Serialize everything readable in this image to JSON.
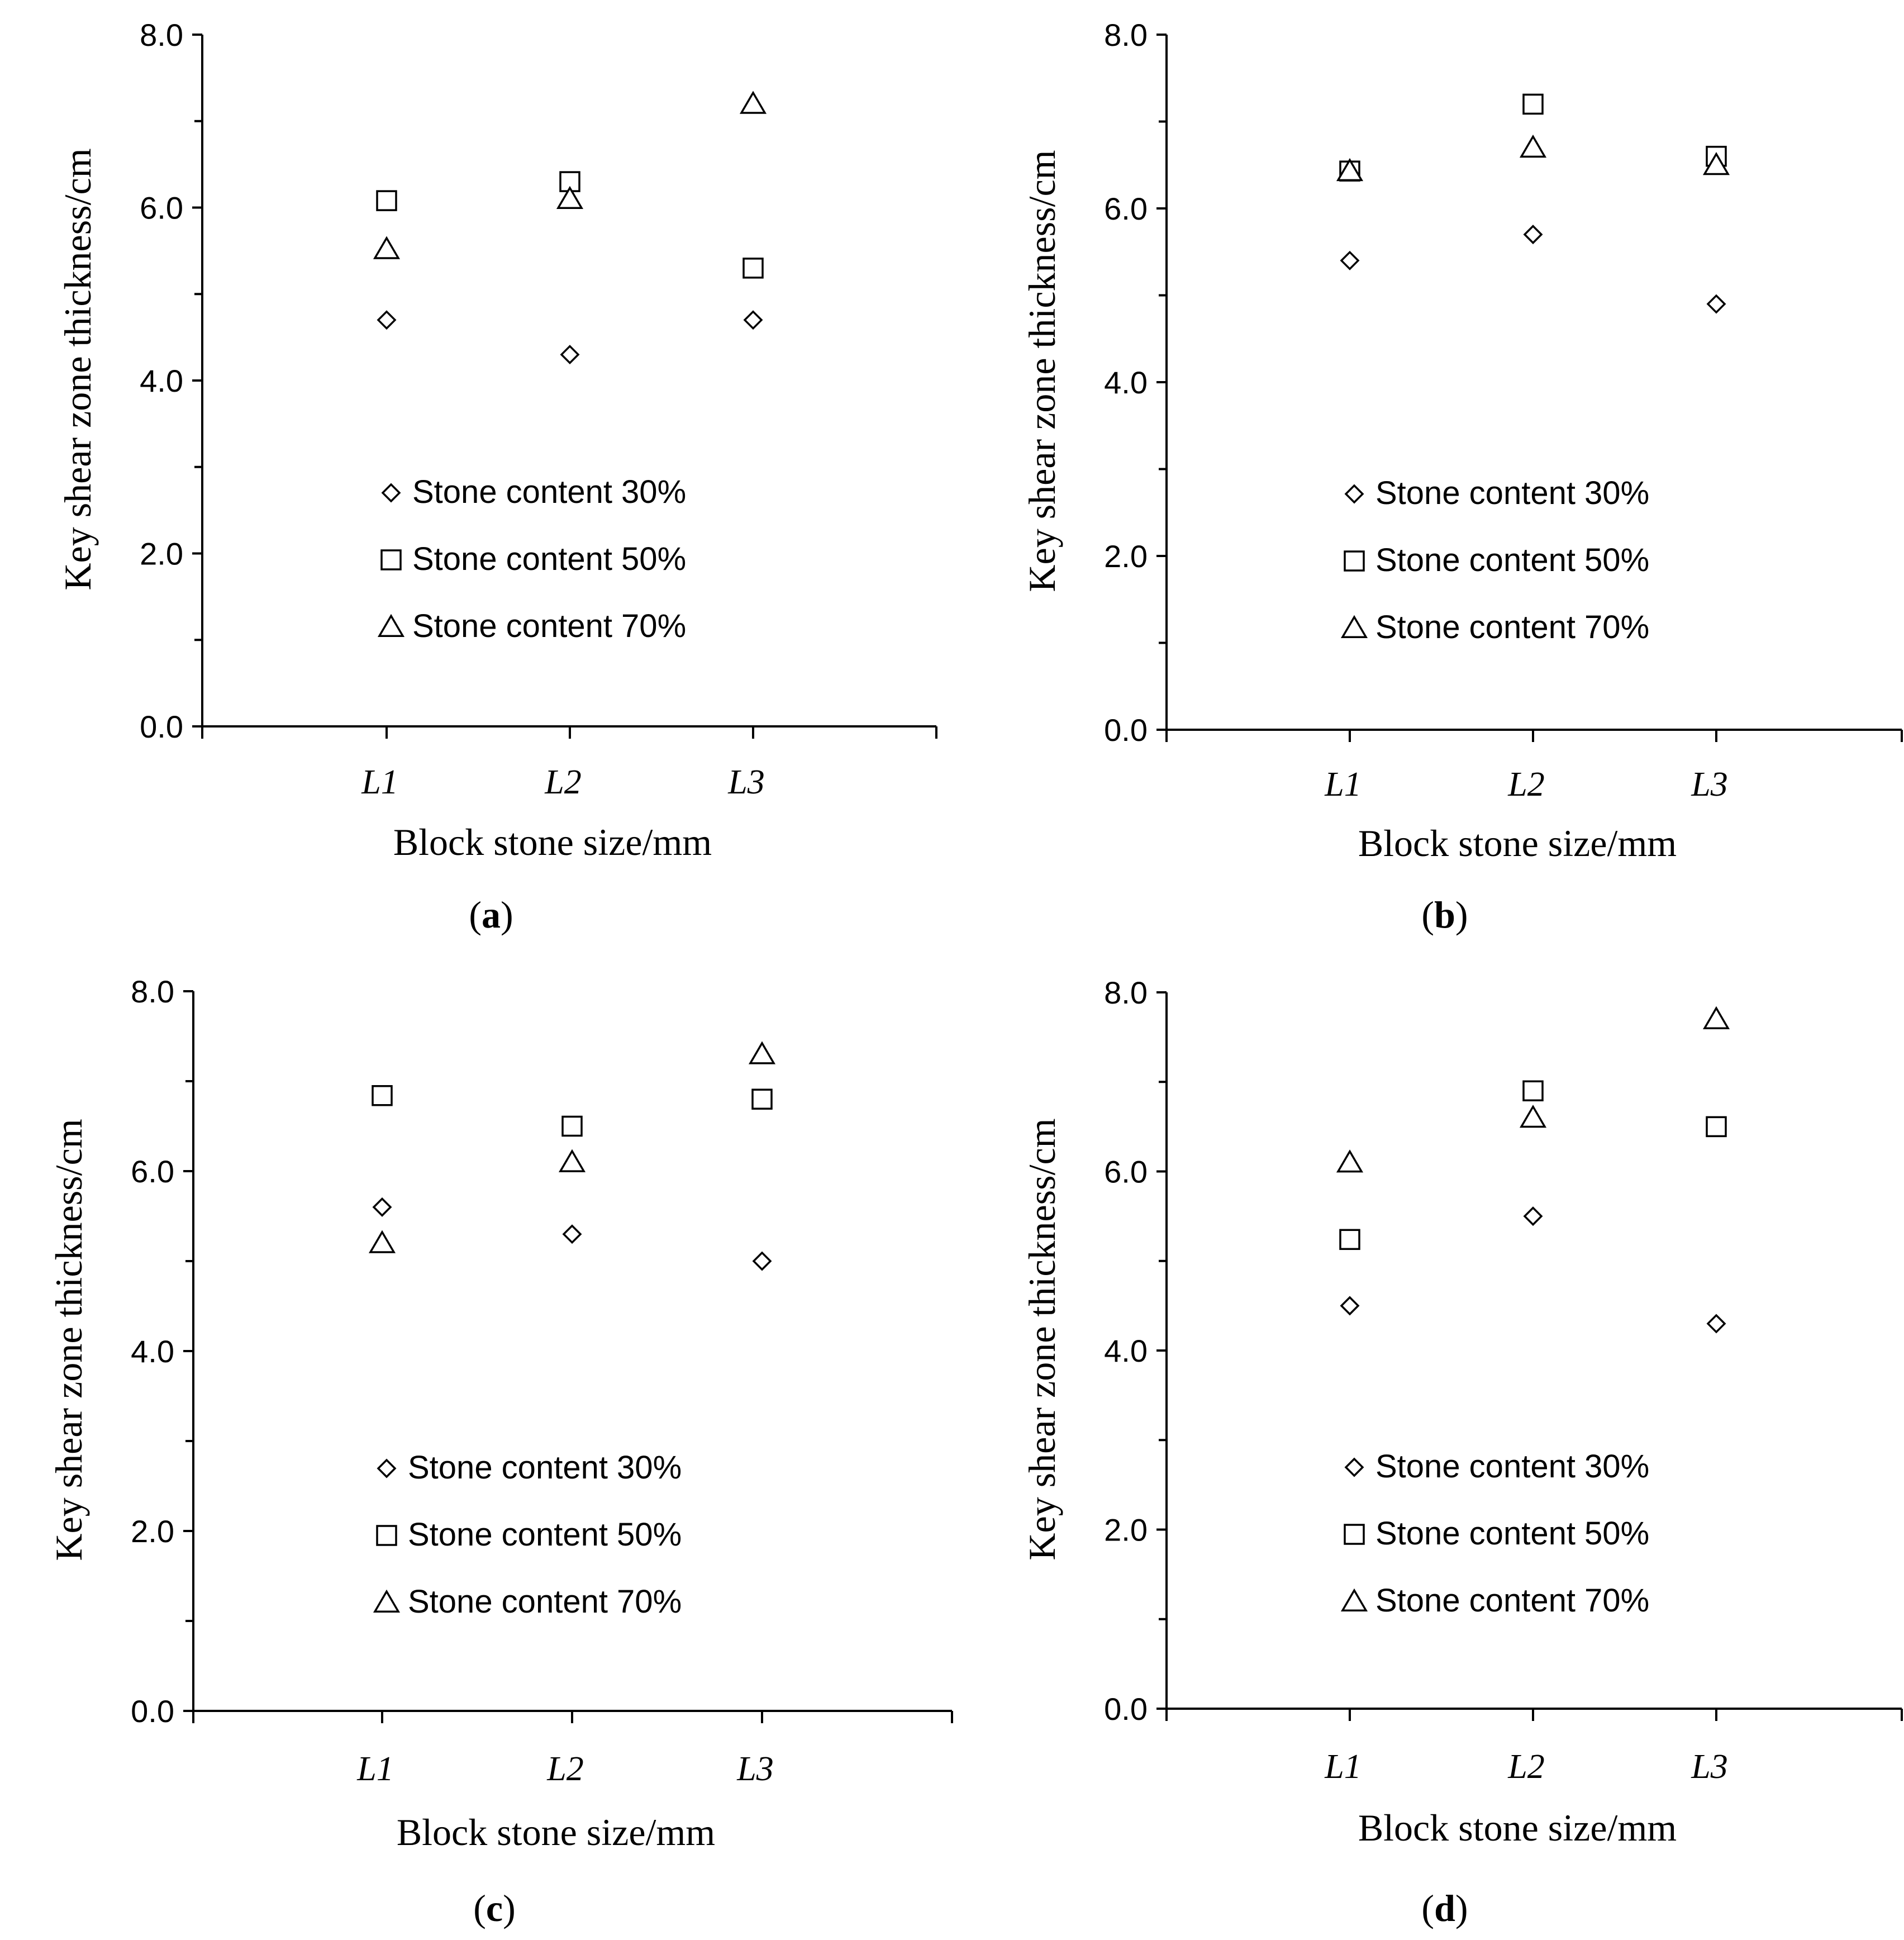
{
  "chart_data": [
    {
      "type": "scatter",
      "panel_label": "a",
      "categories": [
        "L1",
        "L2",
        "L3"
      ],
      "xlabel": "Block stone size/mm",
      "ylabel": "Key shear zone thickness/cm",
      "ylim": [
        0,
        8
      ],
      "yticks": [
        "0.0",
        "2.0",
        "4.0",
        "6.0",
        "8.0"
      ],
      "grid": false,
      "legend_position": "center",
      "series": [
        {
          "name": "Stone content 30%",
          "marker": "diamond",
          "values": [
            4.7,
            4.3,
            4.7
          ]
        },
        {
          "name": "Stone content 50%",
          "marker": "square",
          "values": [
            6.08,
            6.3,
            5.3
          ]
        },
        {
          "name": "Stone content 70%",
          "marker": "triangle",
          "values": [
            5.52,
            6.1,
            7.2
          ]
        }
      ]
    },
    {
      "type": "scatter",
      "panel_label": "b",
      "categories": [
        "L1",
        "L2",
        "L3"
      ],
      "xlabel": "Block stone size/mm",
      "ylabel": "Key shear zone thickness/cm",
      "ylim": [
        0,
        8
      ],
      "yticks": [
        "0.0",
        "2.0",
        "4.0",
        "6.0",
        "8.0"
      ],
      "grid": false,
      "legend_position": "center",
      "series": [
        {
          "name": "Stone content 30%",
          "marker": "diamond",
          "values": [
            5.4,
            5.7,
            4.9
          ]
        },
        {
          "name": "Stone content 50%",
          "marker": "square",
          "values": [
            6.43,
            7.2,
            6.6
          ]
        },
        {
          "name": "Stone content 70%",
          "marker": "triangle",
          "values": [
            6.43,
            6.7,
            6.5
          ]
        }
      ]
    },
    {
      "type": "scatter",
      "panel_label": "c",
      "categories": [
        "L1",
        "L2",
        "L3"
      ],
      "xlabel": "Block stone size/mm",
      "ylabel": "Key shear zone thickness/cm",
      "ylim": [
        0,
        8
      ],
      "yticks": [
        "0.0",
        "2.0",
        "4.0",
        "6.0",
        "8.0"
      ],
      "grid": false,
      "legend_position": "center",
      "series": [
        {
          "name": "Stone content 30%",
          "marker": "diamond",
          "values": [
            5.6,
            5.3,
            5.0
          ]
        },
        {
          "name": "Stone content 50%",
          "marker": "square",
          "values": [
            6.84,
            6.5,
            6.8
          ]
        },
        {
          "name": "Stone content 70%",
          "marker": "triangle",
          "values": [
            5.2,
            6.1,
            7.3
          ]
        }
      ]
    },
    {
      "type": "scatter",
      "panel_label": "d",
      "categories": [
        "L1",
        "L2",
        "L3"
      ],
      "xlabel": "Block stone size/mm",
      "ylabel": "Key shear zone thickness/cm",
      "ylim": [
        0,
        8
      ],
      "yticks": [
        "0.0",
        "2.0",
        "4.0",
        "6.0",
        "8.0"
      ],
      "grid": false,
      "legend_position": "center",
      "series": [
        {
          "name": "Stone content 30%",
          "marker": "diamond",
          "values": [
            4.5,
            5.5,
            4.3
          ]
        },
        {
          "name": "Stone content 50%",
          "marker": "square",
          "values": [
            5.24,
            6.9,
            6.5
          ]
        },
        {
          "name": "Stone content 70%",
          "marker": "triangle",
          "values": [
            6.1,
            6.6,
            7.7
          ]
        }
      ]
    }
  ]
}
